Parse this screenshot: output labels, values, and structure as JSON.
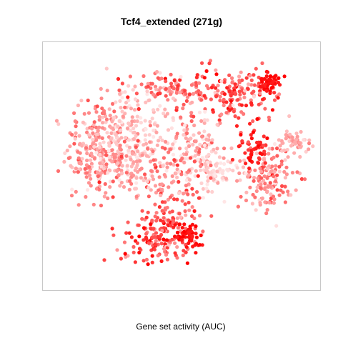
{
  "chart_data": {
    "type": "scatter",
    "title": "Tcf4_extended (271g)",
    "xlabel": "Gene set activity (AUC)",
    "ylabel": "",
    "axes_visible": false,
    "grid": false,
    "legend": "none",
    "colors": {
      "low": "#ffe6e6",
      "high": "#ff0000",
      "frame": "#c8c8c8"
    },
    "xlim": [
      0,
      100
    ],
    "ylim": [
      0,
      100
    ],
    "series": [
      {
        "clusters": [
          {
            "cx": 18,
            "cy": 57,
            "sx": 6,
            "sy": 11,
            "n": 250,
            "auc": 0.35,
            "spread": 0.15
          },
          {
            "cx": 32,
            "cy": 65,
            "sx": 7,
            "sy": 9,
            "n": 160,
            "auc": 0.15,
            "spread": 0.1
          },
          {
            "cx": 45,
            "cy": 83,
            "sx": 8,
            "sy": 4,
            "n": 100,
            "auc": 0.45,
            "spread": 0.2
          },
          {
            "cx": 70,
            "cy": 81,
            "sx": 9,
            "sy": 6,
            "n": 160,
            "auc": 0.6,
            "spread": 0.2
          },
          {
            "cx": 83.5,
            "cy": 85.5,
            "sx": 2.5,
            "sy": 2.5,
            "n": 50,
            "auc": 0.95,
            "spread": 0.05
          },
          {
            "cx": 55,
            "cy": 60,
            "sx": 5,
            "sy": 8,
            "n": 100,
            "auc": 0.3,
            "spread": 0.2
          },
          {
            "cx": 62,
            "cy": 48,
            "sx": 5,
            "sy": 5,
            "n": 80,
            "auc": 0.1,
            "spread": 0.1
          },
          {
            "cx": 82,
            "cy": 45,
            "sx": 5,
            "sy": 7,
            "n": 150,
            "auc": 0.4,
            "spread": 0.2
          },
          {
            "cx": 77,
            "cy": 58,
            "sx": 3,
            "sy": 4,
            "n": 50,
            "auc": 0.85,
            "spread": 0.1
          },
          {
            "cx": 93,
            "cy": 60,
            "sx": 3,
            "sy": 2,
            "n": 50,
            "auc": 0.25,
            "spread": 0.1
          },
          {
            "cx": 46,
            "cy": 42,
            "sx": 6,
            "sy": 10,
            "n": 120,
            "auc": 0.45,
            "spread": 0.2
          },
          {
            "cx": 42,
            "cy": 20,
            "sx": 8,
            "sy": 6,
            "n": 160,
            "auc": 0.65,
            "spread": 0.2
          },
          {
            "cx": 52,
            "cy": 21,
            "sx": 3,
            "sy": 2.5,
            "n": 50,
            "auc": 0.95,
            "spread": 0.05
          },
          {
            "cx": 30,
            "cy": 50,
            "sx": 6,
            "sy": 6,
            "n": 90,
            "auc": 0.3,
            "spread": 0.15
          }
        ]
      }
    ]
  }
}
